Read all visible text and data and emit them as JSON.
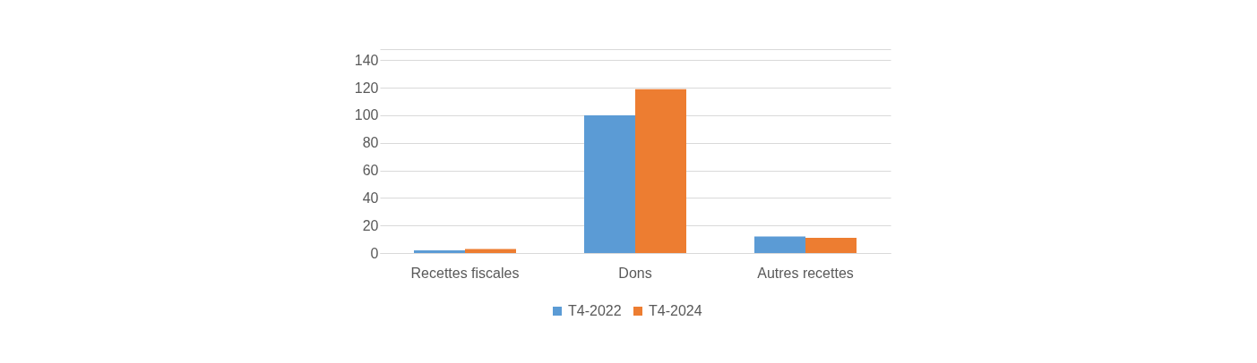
{
  "chart_data": {
    "type": "bar",
    "categories": [
      "Recettes fiscales",
      "Dons",
      "Autres recettes"
    ],
    "series": [
      {
        "name": "T4-2022",
        "color": "#5b9bd5",
        "values": [
          2,
          100,
          12
        ]
      },
      {
        "name": "T4-2024",
        "color": "#ed7d31",
        "values": [
          3,
          119,
          11
        ]
      }
    ],
    "ylim": [
      0,
      148
    ],
    "yticks": [
      0,
      20,
      40,
      60,
      80,
      100,
      120,
      140,
      {
        "value": 148,
        "label": null
      }
    ],
    "grid": "y",
    "legend": "bottom"
  }
}
